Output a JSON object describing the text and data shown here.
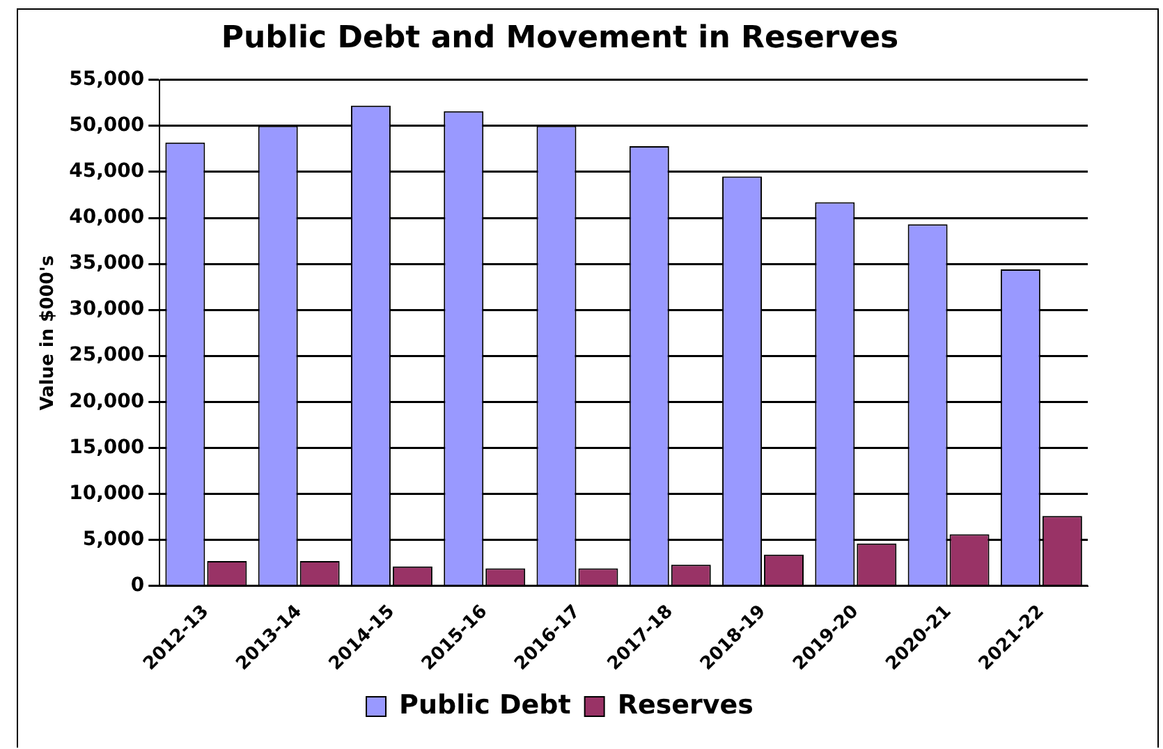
{
  "chart_data": {
    "type": "bar",
    "title": "Public Debt and Movement in Reserves",
    "ylabel": "Value in $000's",
    "categories": [
      "2012-13",
      "2013-14",
      "2014-15",
      "2015-16",
      "2016-17",
      "2017-18",
      "2018-19",
      "2019-20",
      "2020-21",
      "2021-22"
    ],
    "series": [
      {
        "name": "Public Debt",
        "color": "#9999ff",
        "values": [
          48200,
          50000,
          52200,
          51600,
          50000,
          47800,
          44500,
          41700,
          39300,
          34400
        ]
      },
      {
        "name": "Reserves",
        "color": "#993366",
        "values": [
          2700,
          2700,
          2100,
          1900,
          1900,
          2300,
          3400,
          4600,
          5600,
          7600
        ]
      }
    ],
    "ylim": [
      0,
      55000
    ],
    "yticks": [
      0,
      {
        "value": 5000,
        "label": "5,000"
      },
      {
        "value": 10000,
        "label": "10,000"
      },
      {
        "value": 15000,
        "label": "15,000"
      },
      {
        "value": 20000,
        "label": "20,000"
      },
      {
        "value": 25000,
        "label": "25,000"
      },
      {
        "value": 30000,
        "label": "30,000"
      },
      {
        "value": 35000,
        "label": "35,000"
      },
      {
        "value": 40000,
        "label": "40,000"
      },
      {
        "value": 45000,
        "label": "45,000"
      },
      {
        "value": 50000,
        "label": "50,000"
      },
      {
        "value": 55000,
        "label": "55,000"
      }
    ],
    "grid": "y",
    "legend": "bottom"
  }
}
